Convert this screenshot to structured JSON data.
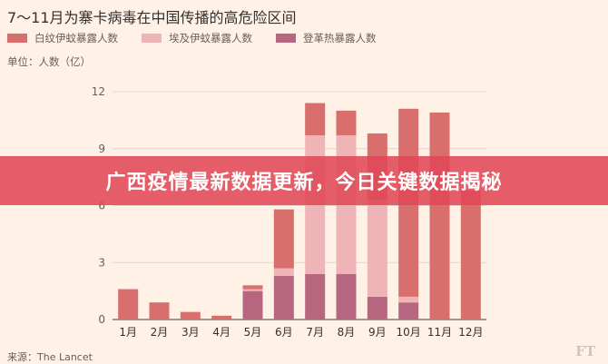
{
  "headline": "广西疫情最新数据更新，今日关键数据揭秘",
  "source": "来源：The Lancet",
  "logo": "FT",
  "colors": {
    "background": "#fff1e5",
    "banner": "#e04856"
  },
  "chart_data": {
    "type": "bar",
    "stacked": true,
    "title": "7～11月为寨卡病毒在中国传播的高危险区间",
    "unit_label": "单位：人数（亿）",
    "xlabel": "",
    "ylabel": "",
    "categories": [
      "1月",
      "2月",
      "3月",
      "4月",
      "5月",
      "6月",
      "7月",
      "8月",
      "9月",
      "10月",
      "11月",
      "12月"
    ],
    "ylim": [
      0,
      12
    ],
    "yticks": [
      0,
      3,
      6,
      9,
      12
    ],
    "grid": true,
    "legend_position": "top",
    "series": [
      {
        "name": "登革热暴露人数",
        "color": "#b7667f",
        "values": [
          0,
          0,
          0,
          0,
          1.5,
          2.3,
          2.4,
          2.4,
          1.2,
          0.9,
          0,
          0
        ]
      },
      {
        "name": "埃及伊蚊暴露人数",
        "color": "#efb4b6",
        "values": [
          0,
          0,
          0,
          0,
          0.1,
          0.4,
          7.3,
          7.3,
          5.1,
          0.3,
          0,
          0
        ]
      },
      {
        "name": "白纹伊蚊暴露人数",
        "color": "#d86f6d",
        "values": [
          1.6,
          0.9,
          0.4,
          0.2,
          0.2,
          3.1,
          1.7,
          1.3,
          3.5,
          9.9,
          10.9,
          6.8
        ]
      }
    ],
    "legend_order": [
      2,
      1,
      0
    ]
  }
}
